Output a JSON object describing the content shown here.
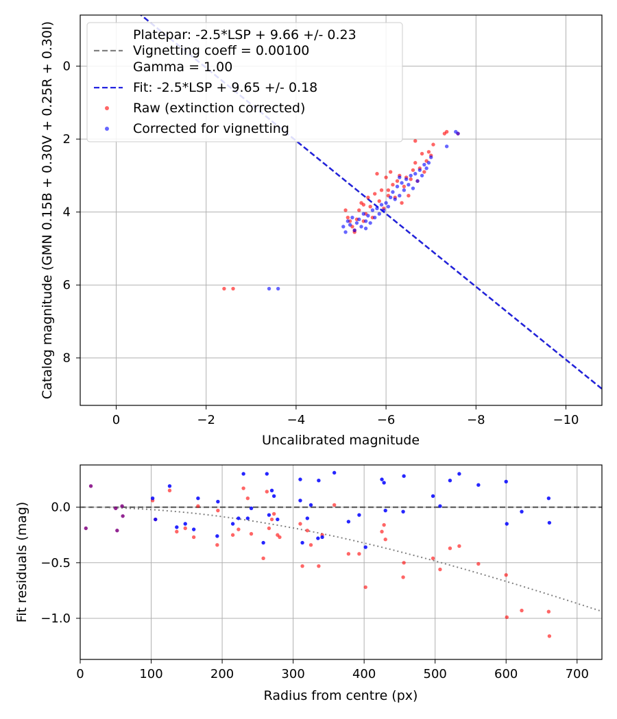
{
  "chart_data": [
    {
      "type": "scatter",
      "xlabel": "Uncalibrated magnitude",
      "ylabel": "Catalog magnitude (GMN 0.15B + 0.30V + 0.25R + 0.30I)",
      "xlim": [
        0.8,
        -10.8
      ],
      "ylim": [
        9.3,
        -1.4
      ],
      "y_inverted": true,
      "x_inverted": true,
      "grid": true,
      "legend_position": "upper-left",
      "xticks": [
        0,
        -2,
        -4,
        -6,
        -8,
        -10
      ],
      "xtick_labels": [
        "0",
        "−2",
        "−4",
        "−6",
        "−8",
        "−10"
      ],
      "yticks": [
        0,
        2,
        4,
        6,
        8
      ],
      "ytick_labels": [
        "0",
        "2",
        "4",
        "6",
        "8"
      ],
      "legend": [
        {
          "label": "Platepar: -2.5*LSP + 9.66 +/- 0.23",
          "style": "none"
        },
        {
          "label": "Vignetting coeff = 0.00100",
          "style": "dashed-gray"
        },
        {
          "label": "Gamma = 1.00",
          "style": "none"
        },
        {
          "label": "Fit: -2.5*LSP + 9.65 +/- 0.18",
          "style": "dashed-blue"
        },
        {
          "label": "Raw (extinction corrected)",
          "style": "dot-red"
        },
        {
          "label": "Corrected for vignetting",
          "style": "dot-blue"
        }
      ],
      "lines": [
        {
          "name": "Platepar: -2.5*LSP + 9.66 +/- 0.23",
          "slope": 1,
          "intercept": 9.66,
          "color": "#808080",
          "dash": "dashed"
        },
        {
          "name": "Fit: -2.5*LSP + 9.65 +/- 0.18",
          "slope": 1,
          "intercept": 9.65,
          "color": "#2020e0",
          "dash": "dashed"
        }
      ],
      "series": [
        {
          "name": "Raw (extinction corrected)",
          "color": "#ff0000",
          "points": [
            [
              -2.4,
              6.1
            ],
            [
              -2.6,
              6.1
            ],
            [
              -5.1,
              3.95
            ],
            [
              -5.15,
              4.15
            ],
            [
              -5.2,
              4.25
            ],
            [
              -5.25,
              4.4
            ],
            [
              -5.3,
              4.5
            ],
            [
              -5.35,
              4.2
            ],
            [
              -5.4,
              3.95
            ],
            [
              -5.45,
              3.75
            ],
            [
              -5.5,
              3.8
            ],
            [
              -5.55,
              4.05
            ],
            [
              -5.6,
              3.6
            ],
            [
              -5.65,
              3.85
            ],
            [
              -5.7,
              4.15
            ],
            [
              -5.75,
              3.5
            ],
            [
              -5.8,
              2.95
            ],
            [
              -5.85,
              3.7
            ],
            [
              -5.9,
              3.4
            ],
            [
              -5.95,
              3.9
            ],
            [
              -6.0,
              3.05
            ],
            [
              -6.05,
              3.55
            ],
            [
              -6.1,
              2.9
            ],
            [
              -6.15,
              3.25
            ],
            [
              -6.2,
              3.6
            ],
            [
              -6.25,
              3.15
            ],
            [
              -6.3,
              3.0
            ],
            [
              -6.35,
              3.75
            ],
            [
              -6.4,
              3.3
            ],
            [
              -6.45,
              3.05
            ],
            [
              -6.5,
              3.55
            ],
            [
              -6.55,
              3.1
            ],
            [
              -6.6,
              2.85
            ],
            [
              -6.65,
              2.65
            ],
            [
              -6.7,
              3.15
            ],
            [
              -6.75,
              2.8
            ],
            [
              -6.8,
              2.4
            ],
            [
              -6.85,
              2.9
            ],
            [
              -6.9,
              2.6
            ],
            [
              -6.95,
              2.35
            ],
            [
              -7.0,
              2.45
            ],
            [
              -7.05,
              2.15
            ],
            [
              -7.3,
              1.85
            ],
            [
              -7.35,
              1.8
            ],
            [
              -7.6,
              1.85
            ],
            [
              -6.65,
              2.05
            ],
            [
              -5.3,
              4.55
            ],
            [
              -5.5,
              4.25
            ],
            [
              -6.05,
              3.4
            ]
          ]
        },
        {
          "name": "Corrected for vignetting",
          "color": "#0000ff",
          "points": [
            [
              -3.4,
              6.1
            ],
            [
              -3.6,
              6.1
            ],
            [
              -5.05,
              4.4
            ],
            [
              -5.1,
              4.55
            ],
            [
              -5.15,
              4.25
            ],
            [
              -5.2,
              4.35
            ],
            [
              -5.25,
              4.15
            ],
            [
              -5.3,
              4.5
            ],
            [
              -5.35,
              4.3
            ],
            [
              -5.4,
              4.2
            ],
            [
              -5.45,
              4.4
            ],
            [
              -5.5,
              4.05
            ],
            [
              -5.55,
              4.25
            ],
            [
              -5.6,
              4.1
            ],
            [
              -5.65,
              4.3
            ],
            [
              -5.7,
              3.95
            ],
            [
              -5.75,
              4.15
            ],
            [
              -5.8,
              3.9
            ],
            [
              -5.85,
              4.05
            ],
            [
              -5.9,
              3.8
            ],
            [
              -5.95,
              3.95
            ],
            [
              -6.0,
              3.75
            ],
            [
              -6.05,
              3.85
            ],
            [
              -6.1,
              3.6
            ],
            [
              -6.15,
              3.45
            ],
            [
              -6.2,
              3.65
            ],
            [
              -6.25,
              3.3
            ],
            [
              -6.3,
              3.55
            ],
            [
              -6.35,
              3.2
            ],
            [
              -6.4,
              3.4
            ],
            [
              -6.45,
              3.1
            ],
            [
              -6.5,
              3.25
            ],
            [
              -6.55,
              3.0
            ],
            [
              -6.6,
              3.35
            ],
            [
              -6.65,
              2.95
            ],
            [
              -6.7,
              3.15
            ],
            [
              -6.75,
              2.85
            ],
            [
              -6.8,
              3.0
            ],
            [
              -6.85,
              2.7
            ],
            [
              -6.9,
              2.8
            ],
            [
              -6.95,
              2.65
            ],
            [
              -7.0,
              2.5
            ],
            [
              -7.35,
              2.2
            ],
            [
              -7.55,
              1.8
            ],
            [
              -7.6,
              1.85
            ],
            [
              -5.55,
              4.45
            ],
            [
              -6.3,
              3.05
            ]
          ]
        }
      ]
    },
    {
      "type": "scatter",
      "xlabel": "Radius from centre (px)",
      "ylabel": "Fit residuals (mag)",
      "xlim": [
        0,
        735
      ],
      "ylim": [
        -1.37,
        0.38
      ],
      "grid": true,
      "xticks": [
        0,
        100,
        200,
        300,
        400,
        500,
        600,
        700
      ],
      "xtick_labels": [
        "0",
        "100",
        "200",
        "300",
        "400",
        "500",
        "600",
        "700"
      ],
      "yticks": [
        0.0,
        -0.5,
        -1.0
      ],
      "ytick_labels": [
        "0.0",
        "−0.5",
        "−1.0"
      ],
      "zero_line": {
        "y": 0,
        "color": "#555555",
        "dash": "dashed"
      },
      "vignetting_curve": {
        "coefficient": 0.001,
        "gamma": 1.0,
        "color": "#808080",
        "dash": "dotted"
      },
      "series": [
        {
          "name": "Raw (extinction corrected)",
          "color": "#ff0000",
          "points": [
            [
              102,
              0.06
            ],
            [
              106,
              -0.11
            ],
            [
              126,
              0.15
            ],
            [
              136,
              -0.22
            ],
            [
              148,
              -0.19
            ],
            [
              160,
              -0.27
            ],
            [
              166,
              0.01
            ],
            [
              193,
              -0.34
            ],
            [
              194,
              -0.03
            ],
            [
              215,
              -0.25
            ],
            [
              223,
              -0.2
            ],
            [
              230,
              0.17
            ],
            [
              236,
              0.08
            ],
            [
              241,
              -0.24
            ],
            [
              258,
              -0.46
            ],
            [
              263,
              0.14
            ],
            [
              266,
              -0.19
            ],
            [
              270,
              -0.11
            ],
            [
              273,
              -0.06
            ],
            [
              278,
              -0.25
            ],
            [
              281,
              -0.27
            ],
            [
              310,
              -0.15
            ],
            [
              313,
              -0.53
            ],
            [
              320,
              -0.21
            ],
            [
              325,
              -0.34
            ],
            [
              336,
              -0.53
            ],
            [
              341,
              -0.25
            ],
            [
              358,
              0.02
            ],
            [
              378,
              -0.42
            ],
            [
              393,
              -0.42
            ],
            [
              402,
              -0.72
            ],
            [
              425,
              -0.22
            ],
            [
              428,
              -0.16
            ],
            [
              430,
              -0.29
            ],
            [
              455,
              -0.63
            ],
            [
              456,
              -0.5
            ],
            [
              497,
              -0.46
            ],
            [
              507,
              -0.56
            ],
            [
              521,
              -0.37
            ],
            [
              534,
              -0.35
            ],
            [
              561,
              -0.51
            ],
            [
              600,
              -0.61
            ],
            [
              601,
              -0.99
            ],
            [
              622,
              -0.93
            ],
            [
              660,
              -0.94
            ],
            [
              661,
              -1.16
            ]
          ]
        },
        {
          "name": "Corrected for vignetting",
          "color": "#0000ff",
          "points": [
            [
              102,
              0.08
            ],
            [
              106,
              -0.11
            ],
            [
              126,
              0.19
            ],
            [
              136,
              -0.18
            ],
            [
              148,
              -0.15
            ],
            [
              160,
              -0.2
            ],
            [
              166,
              0.08
            ],
            [
              193,
              -0.26
            ],
            [
              194,
              0.05
            ],
            [
              215,
              -0.15
            ],
            [
              223,
              -0.1
            ],
            [
              230,
              0.3
            ],
            [
              236,
              -0.1
            ],
            [
              241,
              -0.01
            ],
            [
              258,
              -0.32
            ],
            [
              263,
              0.3
            ],
            [
              266,
              -0.07
            ],
            [
              270,
              0.15
            ],
            [
              273,
              0.1
            ],
            [
              278,
              -0.11
            ],
            [
              310,
              0.06
            ],
            [
              313,
              -0.32
            ],
            [
              320,
              -0.1
            ],
            [
              325,
              0.02
            ],
            [
              336,
              0.24
            ],
            [
              341,
              -0.27
            ],
            [
              358,
              0.31
            ],
            [
              378,
              -0.13
            ],
            [
              393,
              -0.07
            ],
            [
              402,
              -0.36
            ],
            [
              425,
              0.25
            ],
            [
              428,
              0.22
            ],
            [
              430,
              -0.03
            ],
            [
              455,
              -0.04
            ],
            [
              456,
              0.28
            ],
            [
              497,
              0.1
            ],
            [
              507,
              0.01
            ],
            [
              521,
              0.24
            ],
            [
              534,
              0.3
            ],
            [
              561,
              0.2
            ],
            [
              600,
              0.23
            ],
            [
              601,
              -0.15
            ],
            [
              622,
              -0.04
            ],
            [
              660,
              0.08
            ],
            [
              661,
              -0.14
            ],
            [
              310,
              0.25
            ],
            [
              335,
              -0.28
            ]
          ]
        },
        {
          "name": "",
          "color": "#800080",
          "points": [
            [
              8,
              -0.19
            ],
            [
              15,
              0.19
            ],
            [
              50,
              -0.01
            ],
            [
              52,
              -0.21
            ],
            [
              59,
              0.01
            ],
            [
              60,
              -0.08
            ]
          ]
        }
      ]
    }
  ]
}
